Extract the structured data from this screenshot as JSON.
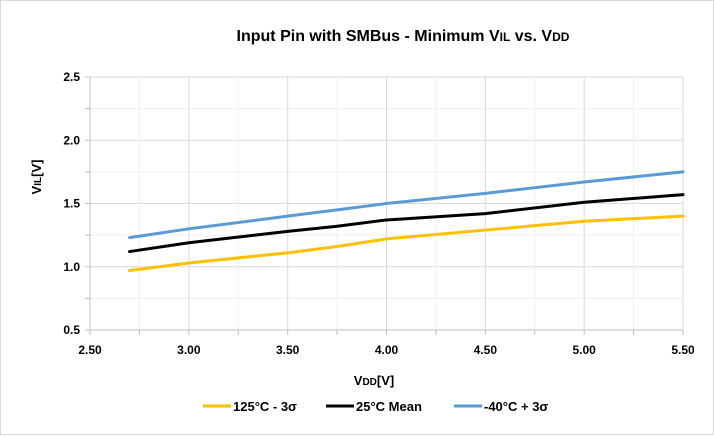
{
  "chart_data": {
    "type": "line",
    "title": "Input Pin with SMBus - Minimum VIL vs. VDD",
    "title_parts": [
      {
        "text": "Input Pin with SMBus - Minimum V",
        "sub": false
      },
      {
        "text": "IL",
        "sub": true
      },
      {
        "text": " vs. V",
        "sub": false
      },
      {
        "text": "DD",
        "sub": true
      }
    ],
    "xlabel": "VDD[V]",
    "xlabel_parts": [
      {
        "text": "V",
        "sub": false
      },
      {
        "text": "DD",
        "sub": true
      },
      {
        "text": "[V]",
        "sub": false
      }
    ],
    "ylabel": "VIL[V]",
    "ylabel_parts": [
      {
        "text": "V",
        "sub": false
      },
      {
        "text": "IL",
        "sub": true
      },
      {
        "text": "[V]",
        "sub": false
      }
    ],
    "xlim": [
      2.5,
      5.5
    ],
    "ylim": [
      0.5,
      2.5
    ],
    "x_ticks": [
      2.5,
      3.0,
      3.5,
      4.0,
      4.5,
      5.0,
      5.5
    ],
    "x_tick_labels": [
      "2.50",
      "3.00",
      "3.50",
      "4.00",
      "4.50",
      "5.00",
      "5.50"
    ],
    "y_ticks": [
      0.5,
      1.0,
      1.5,
      2.0,
      2.5
    ],
    "y_tick_labels": [
      "0.5",
      "1.0",
      "1.5",
      "2.0",
      "2.5"
    ],
    "x_minor_step": 0.25,
    "y_minor_step": 0.25,
    "grid": true,
    "legend_position": "bottom",
    "x": [
      2.7,
      3.0,
      3.5,
      3.75,
      4.0,
      4.5,
      5.0,
      5.5
    ],
    "series": [
      {
        "name": "125°C - 3σ",
        "color": "#ffc000",
        "values": [
          0.97,
          1.03,
          1.11,
          1.16,
          1.22,
          1.29,
          1.36,
          1.4
        ]
      },
      {
        "name": "25°C Mean",
        "color": "#000000",
        "values": [
          1.12,
          1.19,
          1.28,
          1.32,
          1.37,
          1.42,
          1.51,
          1.57
        ]
      },
      {
        "name": "-40°C + 3σ",
        "color": "#5b9bd5",
        "values": [
          1.23,
          1.3,
          1.4,
          1.45,
          1.5,
          1.58,
          1.67,
          1.75
        ]
      }
    ]
  },
  "colors": {
    "grid_major": "#d9d9d9",
    "grid_minor": "#efefef",
    "axis": "#bfbfbf"
  }
}
